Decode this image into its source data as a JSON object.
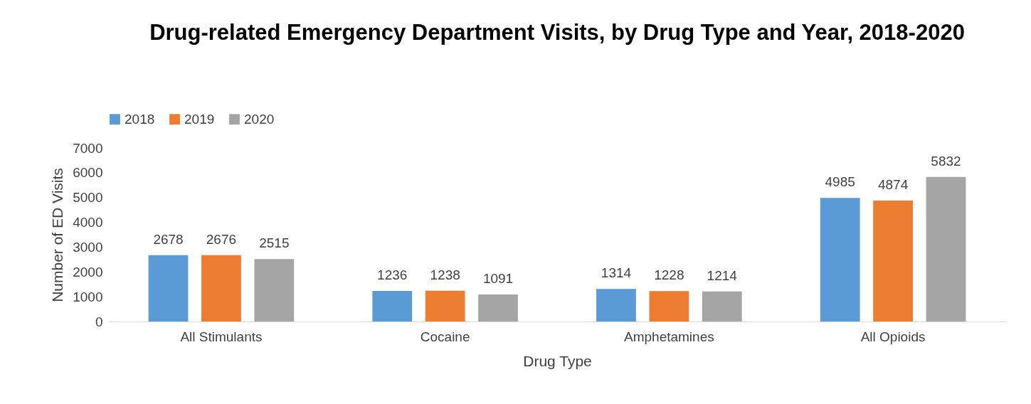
{
  "chart_data": {
    "type": "bar",
    "title": "Drug-related Emergency Department Visits, by Drug Type and Year, 2018-2020",
    "xlabel": "Drug Type",
    "ylabel": "Number of ED Visits",
    "categories": [
      "All Stimulants",
      "Cocaine",
      "Amphetamines",
      "All Opioids"
    ],
    "series": [
      {
        "name": "2018",
        "color": "#5b9bd5",
        "values": [
          2678,
          1236,
          1314,
          4985
        ]
      },
      {
        "name": "2019",
        "color": "#ed7d31",
        "values": [
          2676,
          1238,
          1228,
          4874
        ]
      },
      {
        "name": "2020",
        "color": "#a5a5a5",
        "values": [
          2515,
          1091,
          1214,
          5832
        ]
      }
    ],
    "ylim": [
      0,
      7000
    ],
    "yticks": [
      0,
      1000,
      2000,
      3000,
      4000,
      5000,
      6000,
      7000
    ],
    "grid": false,
    "legend": "top",
    "data_labels": true
  }
}
